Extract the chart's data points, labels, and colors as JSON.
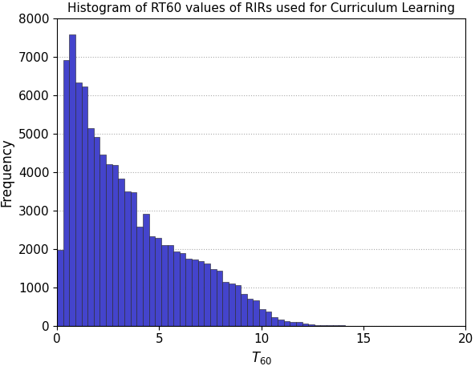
{
  "title": "Histogram of RT60 values of RIRs used for Curriculum Learning",
  "xlabel": "$T_{60}$",
  "ylabel": "Frequency",
  "bar_color": "#4444cc",
  "bar_edge_color": "#222222",
  "bar_edge_width": 0.4,
  "xlim": [
    0,
    20
  ],
  "ylim": [
    0,
    8000
  ],
  "bin_width": 0.3,
  "bar_heights": [
    1980,
    6920,
    7580,
    6340,
    6220,
    5140,
    4910,
    4450,
    4210,
    4190,
    3820,
    3500,
    3470,
    2580,
    2920,
    2320,
    2280,
    2100,
    2100,
    1940,
    1890,
    1750,
    1730,
    1680,
    1620,
    1470,
    1440,
    1140,
    1100,
    1060,
    820,
    700,
    650,
    430,
    360,
    230,
    160,
    110,
    100,
    90,
    60,
    30,
    20,
    10,
    5,
    3,
    2,
    1,
    0,
    0,
    0,
    0,
    0,
    0,
    0,
    0,
    0,
    0,
    0,
    0,
    0,
    0,
    0,
    0,
    0,
    0,
    0
  ],
  "xticks": [
    0,
    5,
    10,
    15,
    20
  ],
  "yticks": [
    0,
    1000,
    2000,
    3000,
    4000,
    5000,
    6000,
    7000,
    8000
  ],
  "grid_color": "#aaaaaa",
  "grid_linestyle": ":",
  "grid_linewidth": 0.8,
  "background_color": "#ffffff",
  "title_fontsize": 11,
  "axis_label_fontsize": 12,
  "tick_fontsize": 11,
  "figsize": [
    5.92,
    4.62
  ],
  "dpi": 100
}
